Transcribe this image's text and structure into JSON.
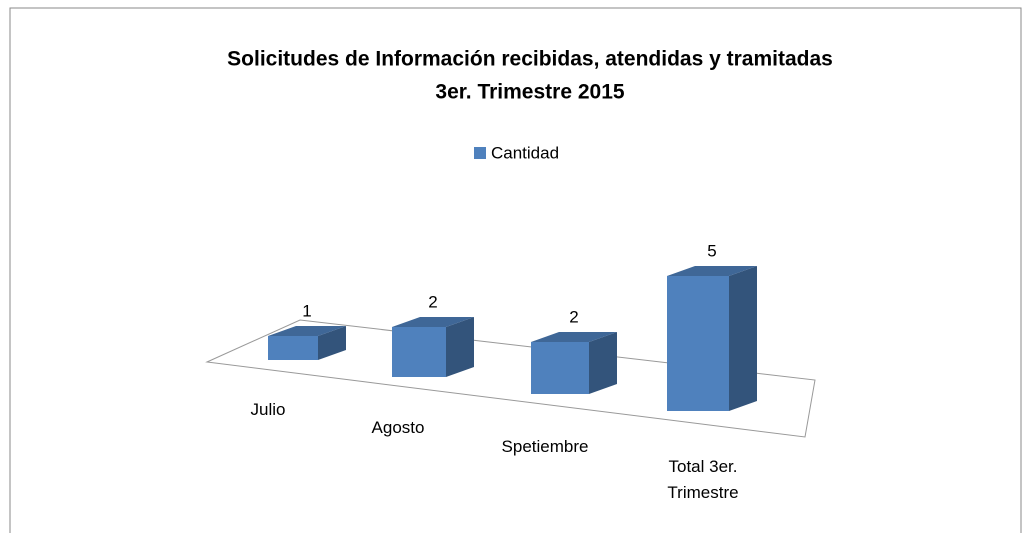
{
  "chart_data": {
    "type": "bar3d",
    "title": "Solicitudes de Información recibidas, atendidas y tramitadas",
    "subtitle": "3er. Trimestre 2015",
    "categories": [
      "Julio",
      "Agosto",
      "Spetiembre",
      "Total 3er. Trimestre"
    ],
    "series": [
      {
        "name": "Cantidad",
        "color": "#4f81bd",
        "values": [
          1,
          2,
          2,
          5
        ]
      }
    ],
    "legend": "top"
  }
}
